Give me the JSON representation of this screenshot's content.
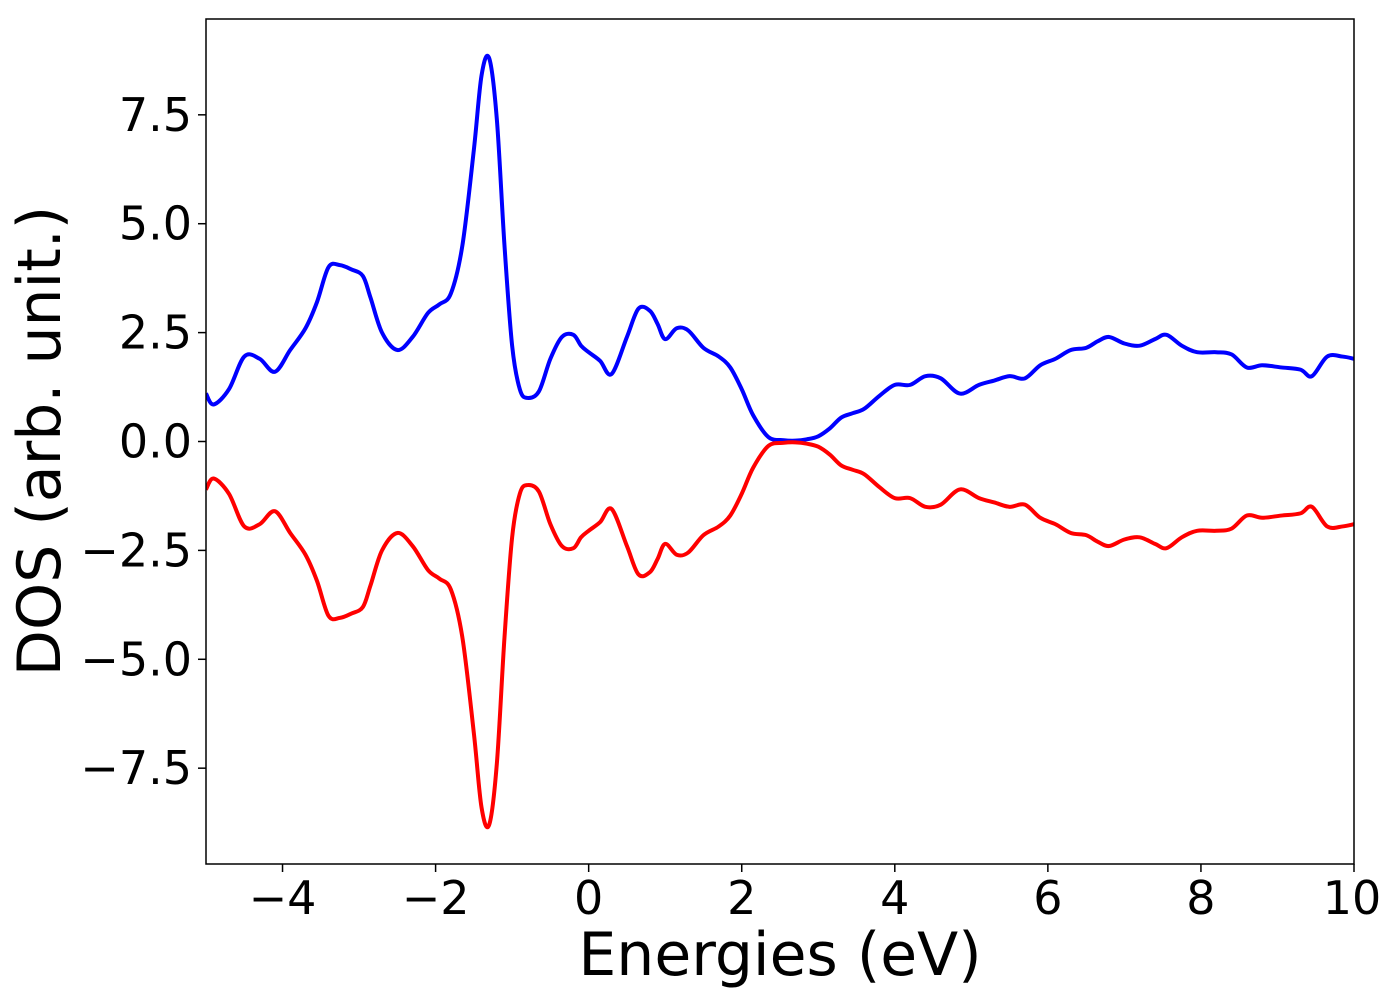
{
  "chart_data": {
    "type": "line",
    "title": "",
    "xlabel": "Energies (eV)",
    "ylabel": "DOS (arb. unit.)",
    "xlim": [
      -5,
      10
    ],
    "ylim": [
      -9.7,
      9.7
    ],
    "grid": false,
    "legend": "none",
    "xticks": [
      -4,
      -2,
      0,
      2,
      4,
      6,
      8,
      10
    ],
    "xtick_labels": [
      "−4",
      "−2",
      "0",
      "2",
      "4",
      "6",
      "8",
      "10"
    ],
    "yticks": [
      7.5,
      5.0,
      2.5,
      0.0,
      -2.5,
      -5.0,
      -7.5
    ],
    "ytick_labels": [
      "7.5",
      "5.0",
      "2.5",
      "0.0",
      "−2.5",
      "−5.0",
      "−7.5"
    ],
    "x": [
      -5.0,
      -4.9,
      -4.7,
      -4.5,
      -4.3,
      -4.1,
      -3.9,
      -3.7,
      -3.55,
      -3.4,
      -3.25,
      -3.1,
      -2.95,
      -2.85,
      -2.7,
      -2.5,
      -2.3,
      -2.1,
      -1.95,
      -1.8,
      -1.65,
      -1.5,
      -1.4,
      -1.3,
      -1.2,
      -1.1,
      -1.0,
      -0.9,
      -0.8,
      -0.65,
      -0.5,
      -0.35,
      -0.2,
      -0.1,
      0.0,
      0.15,
      0.3,
      0.5,
      0.65,
      0.8,
      0.9,
      1.0,
      1.15,
      1.3,
      1.5,
      1.7,
      1.85,
      2.0,
      2.15,
      2.35,
      2.55,
      2.7,
      2.85,
      3.0,
      3.15,
      3.3,
      3.45,
      3.6,
      3.8,
      4.0,
      4.2,
      4.4,
      4.6,
      4.85,
      5.1,
      5.3,
      5.5,
      5.7,
      5.9,
      6.1,
      6.3,
      6.5,
      6.65,
      6.8,
      7.0,
      7.2,
      7.4,
      7.55,
      7.75,
      7.95,
      8.2,
      8.4,
      8.6,
      8.8,
      9.05,
      9.3,
      9.45,
      9.65,
      9.85,
      10.0
    ],
    "series": [
      {
        "color": "#0000ff",
        "values": [
          1.1,
          0.85,
          1.2,
          1.95,
          1.9,
          1.6,
          2.1,
          2.6,
          3.2,
          4.0,
          4.05,
          3.95,
          3.8,
          3.3,
          2.5,
          2.1,
          2.4,
          2.95,
          3.15,
          3.4,
          4.5,
          6.7,
          8.4,
          8.8,
          7.4,
          4.5,
          2.2,
          1.2,
          1.0,
          1.15,
          1.9,
          2.4,
          2.45,
          2.2,
          2.05,
          1.85,
          1.55,
          2.4,
          3.05,
          3.0,
          2.7,
          2.35,
          2.6,
          2.55,
          2.15,
          1.95,
          1.7,
          1.2,
          0.6,
          0.1,
          0.03,
          0.02,
          0.05,
          0.12,
          0.3,
          0.55,
          0.65,
          0.75,
          1.05,
          1.3,
          1.3,
          1.5,
          1.45,
          1.1,
          1.3,
          1.4,
          1.5,
          1.45,
          1.75,
          1.9,
          2.1,
          2.15,
          2.3,
          2.4,
          2.25,
          2.2,
          2.35,
          2.45,
          2.2,
          2.05,
          2.05,
          2.0,
          1.7,
          1.75,
          1.7,
          1.65,
          1.5,
          1.95,
          1.95,
          1.9
        ]
      },
      {
        "color": "#ff0000",
        "values": [
          -1.1,
          -0.85,
          -1.2,
          -1.95,
          -1.9,
          -1.6,
          -2.1,
          -2.6,
          -3.2,
          -4.0,
          -4.05,
          -3.95,
          -3.8,
          -3.3,
          -2.5,
          -2.1,
          -2.4,
          -2.95,
          -3.15,
          -3.4,
          -4.5,
          -6.7,
          -8.4,
          -8.8,
          -7.4,
          -4.5,
          -2.2,
          -1.2,
          -1.0,
          -1.15,
          -1.9,
          -2.4,
          -2.45,
          -2.2,
          -2.05,
          -1.85,
          -1.55,
          -2.4,
          -3.05,
          -3.0,
          -2.7,
          -2.35,
          -2.6,
          -2.55,
          -2.15,
          -1.95,
          -1.7,
          -1.2,
          -0.6,
          -0.1,
          -0.03,
          -0.02,
          -0.05,
          -0.12,
          -0.3,
          -0.55,
          -0.65,
          -0.75,
          -1.05,
          -1.3,
          -1.3,
          -1.5,
          -1.45,
          -1.1,
          -1.3,
          -1.4,
          -1.5,
          -1.45,
          -1.75,
          -1.9,
          -2.1,
          -2.15,
          -2.3,
          -2.4,
          -2.25,
          -2.2,
          -2.35,
          -2.45,
          -2.2,
          -2.05,
          -2.05,
          -2.0,
          -1.7,
          -1.75,
          -1.7,
          -1.65,
          -1.5,
          -1.95,
          -1.95,
          -1.9
        ]
      }
    ]
  }
}
